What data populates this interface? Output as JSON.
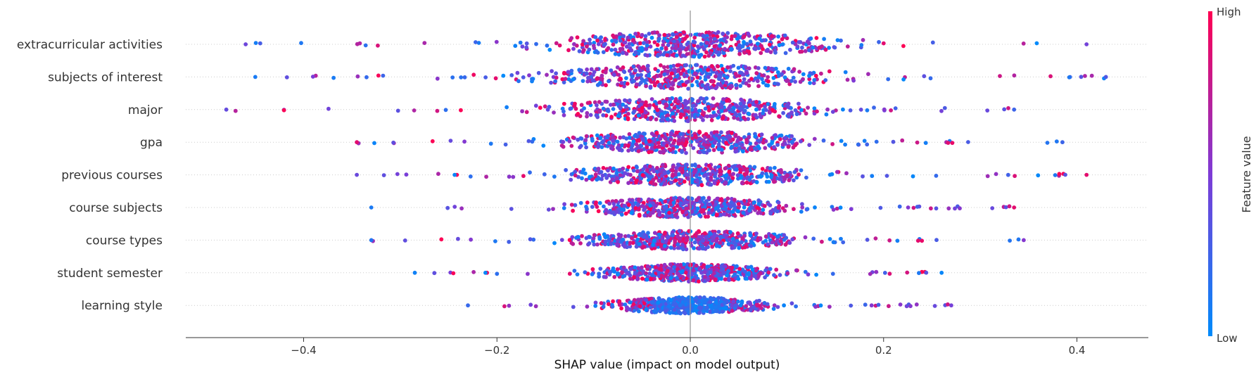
{
  "chart_data": {
    "type": "scatter",
    "subtype": "shap-beeswarm",
    "features": [
      "extracurricular activities",
      "subjects of interest",
      "major",
      "gpa",
      "previous courses",
      "course subjects",
      "course types",
      "student semester",
      "learning style"
    ],
    "xlabel": "SHAP value (impact on model output)",
    "xlim": [
      -0.525,
      0.47
    ],
    "xticks": [
      -0.4,
      -0.2,
      0.0,
      0.2,
      0.4
    ],
    "xtick_labels": [
      "−0.4",
      "−0.2",
      "0.0",
      "0.2",
      "0.4"
    ],
    "feature_ranges": [
      {
        "feature": "extracurricular activities",
        "min": -0.46,
        "max": 0.41
      },
      {
        "feature": "subjects of interest",
        "min": -0.45,
        "max": 0.43
      },
      {
        "feature": "major",
        "min": -0.48,
        "max": 0.335
      },
      {
        "feature": "gpa",
        "min": -0.345,
        "max": 0.385
      },
      {
        "feature": "previous courses",
        "min": -0.345,
        "max": 0.41
      },
      {
        "feature": "course subjects",
        "min": -0.33,
        "max": 0.335
      },
      {
        "feature": "course types",
        "min": -0.33,
        "max": 0.345
      },
      {
        "feature": "student semester",
        "min": -0.285,
        "max": 0.26
      },
      {
        "feature": "learning style",
        "min": -0.23,
        "max": 0.27
      }
    ],
    "colorbar": {
      "title": "Feature value",
      "high_label": "High",
      "low_label": "Low",
      "low_color": "#008bfb",
      "high_color": "#ff0052"
    },
    "zero_line": 0.0,
    "grid": false
  }
}
